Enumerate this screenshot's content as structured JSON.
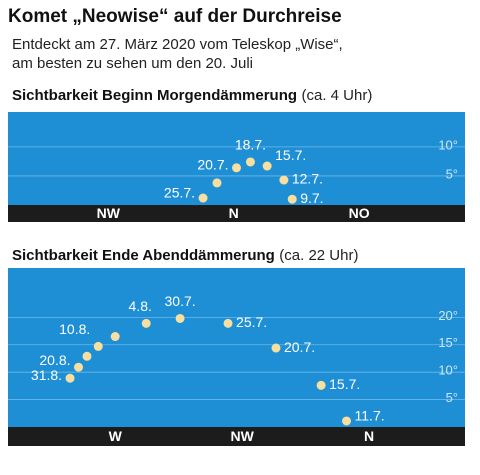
{
  "header": {
    "title": "Komet „Neowise“ auf der Durchreise",
    "subtitle_lines": [
      "Entdeckt am 27. März 2020 vom Teleskop „Wise“,",
      "am besten zu sehen um den 20. Juli"
    ]
  },
  "chart_data": [
    {
      "type": "scatter",
      "title": "Sichtbarkeit Beginn Morgendämmerung",
      "title_note": "(ca. 4 Uhr)",
      "x": [
        21,
        18,
        12,
        6,
        1,
        -6,
        -11
      ],
      "values": [
        1,
        4.3,
        6.7,
        7.4,
        6.4,
        3.8,
        1.2
      ],
      "point_labels": [
        "9.7.",
        "12.7.",
        "15.7.",
        "18.7.",
        "20.7.",
        null,
        "25.7."
      ],
      "color": "#f6df9f",
      "background": "#1f8fd5",
      "xlim": [
        -81,
        83
      ],
      "ylim": [
        0,
        16
      ],
      "xticks": [
        {
          "value": -45,
          "label": "NW"
        },
        {
          "value": 0,
          "label": "N"
        },
        {
          "value": 45,
          "label": "NO"
        }
      ],
      "yticks": [
        {
          "value": 5,
          "label": "5°"
        },
        {
          "value": 10,
          "label": "10°"
        }
      ],
      "grid": true
    },
    {
      "type": "scatter",
      "title": "Sichtbarkeit Ende Abenddämmerung",
      "title_note": "(ca. 22 Uhr)",
      "x": [
        -8,
        -17,
        -33,
        -50,
        -67,
        -79,
        -90,
        -96,
        -100,
        -103,
        -106
      ],
      "values": [
        1.1,
        7.6,
        14.4,
        18.9,
        19.8,
        18.9,
        16.5,
        14.7,
        12.9,
        10.9,
        8.9
      ],
      "point_labels": [
        "11.7.",
        "15.7.",
        "20.7.",
        "25.7.",
        "30.7.",
        "4.8.",
        null,
        "10.8.",
        null,
        "20.8.",
        "31.8."
      ],
      "color": "#f6df9f",
      "background": "#1f8fd5",
      "xlim": [
        -128,
        34
      ],
      "ylim": [
        0,
        29
      ],
      "xticks": [
        {
          "value": -90,
          "label": "W"
        },
        {
          "value": -45,
          "label": "NW"
        },
        {
          "value": 0,
          "label": "N"
        }
      ],
      "yticks": [
        {
          "value": 5,
          "label": "5°"
        },
        {
          "value": 10,
          "label": "10°"
        },
        {
          "value": 15,
          "label": "15°"
        },
        {
          "value": 20,
          "label": "20°"
        }
      ],
      "grid": true
    }
  ]
}
